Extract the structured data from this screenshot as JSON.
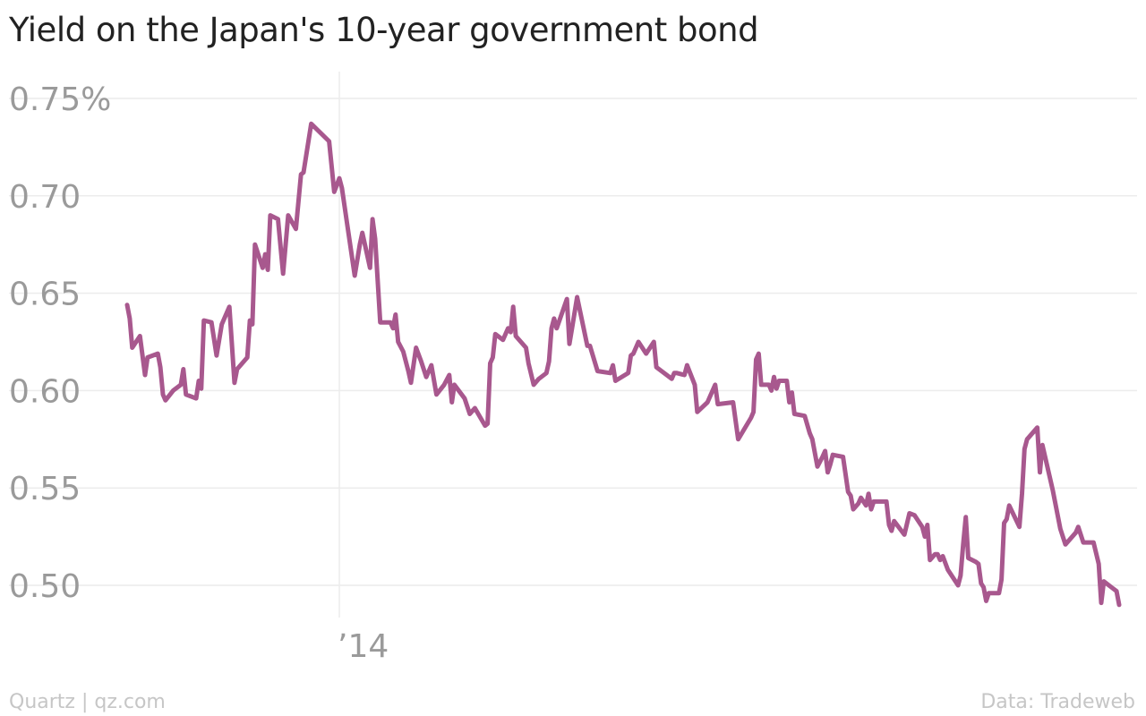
{
  "chart_data": {
    "type": "line",
    "title": "Yield on the Japan's 10-year government bond",
    "xlabel": "",
    "ylabel": "",
    "ylim": [
      0.48,
      0.76
    ],
    "y_ticks": [
      {
        "value": 0.75,
        "label": "0.75%"
      },
      {
        "value": 0.7,
        "label": "0.70"
      },
      {
        "value": 0.65,
        "label": "0.65"
      },
      {
        "value": 0.6,
        "label": "0.60"
      },
      {
        "value": 0.55,
        "label": "0.55"
      },
      {
        "value": 0.5,
        "label": "0.50"
      }
    ],
    "x_ticks": [
      {
        "value": "2014-01-01",
        "label": "’14"
      }
    ],
    "xlim": [
      "2013-10-01",
      "2014-12-31"
    ],
    "grid": true,
    "legend": "none",
    "series": [
      {
        "color": "#a8588e",
        "points": [
          [
            "2013-10-10",
            0.644
          ],
          [
            "2013-10-11",
            0.637
          ],
          [
            "2013-10-12",
            0.622
          ],
          [
            "2013-10-15",
            0.628
          ],
          [
            "2013-10-17",
            0.608
          ],
          [
            "2013-10-18",
            0.617
          ],
          [
            "2013-10-22",
            0.619
          ],
          [
            "2013-10-23",
            0.612
          ],
          [
            "2013-10-24",
            0.598
          ],
          [
            "2013-10-25",
            0.595
          ],
          [
            "2013-10-28",
            0.6
          ],
          [
            "2013-10-31",
            0.603
          ],
          [
            "2013-11-01",
            0.611
          ],
          [
            "2013-11-02",
            0.598
          ],
          [
            "2013-11-06",
            0.596
          ],
          [
            "2013-11-07",
            0.605
          ],
          [
            "2013-11-08",
            0.601
          ],
          [
            "2013-11-09",
            0.636
          ],
          [
            "2013-11-12",
            0.635
          ],
          [
            "2013-11-14",
            0.618
          ],
          [
            "2013-11-16",
            0.634
          ],
          [
            "2013-11-19",
            0.643
          ],
          [
            "2013-11-21",
            0.604
          ],
          [
            "2013-11-22",
            0.611
          ],
          [
            "2013-11-26",
            0.617
          ],
          [
            "2013-11-27",
            0.636
          ],
          [
            "2013-11-28",
            0.634
          ],
          [
            "2013-11-29",
            0.675
          ],
          [
            "2013-12-02",
            0.663
          ],
          [
            "2013-12-03",
            0.67
          ],
          [
            "2013-12-04",
            0.662
          ],
          [
            "2013-12-05",
            0.69
          ],
          [
            "2013-12-08",
            0.688
          ],
          [
            "2013-12-10",
            0.66
          ],
          [
            "2013-12-12",
            0.69
          ],
          [
            "2013-12-15",
            0.683
          ],
          [
            "2013-12-17",
            0.711
          ],
          [
            "2013-12-18",
            0.712
          ],
          [
            "2013-12-21",
            0.737
          ],
          [
            "2013-12-28",
            0.728
          ],
          [
            "2013-12-30",
            0.702
          ],
          [
            "2014-01-01",
            0.709
          ],
          [
            "2014-01-02",
            0.704
          ],
          [
            "2014-01-04",
            0.686
          ],
          [
            "2014-01-07",
            0.659
          ],
          [
            "2014-01-09",
            0.675
          ],
          [
            "2014-01-10",
            0.681
          ],
          [
            "2014-01-13",
            0.663
          ],
          [
            "2014-01-14",
            0.688
          ],
          [
            "2014-01-15",
            0.678
          ],
          [
            "2014-01-17",
            0.635
          ],
          [
            "2014-01-21",
            0.635
          ],
          [
            "2014-01-22",
            0.632
          ],
          [
            "2014-01-23",
            0.639
          ],
          [
            "2014-01-24",
            0.625
          ],
          [
            "2014-01-26",
            0.62
          ],
          [
            "2014-01-28",
            0.61
          ],
          [
            "2014-01-29",
            0.604
          ],
          [
            "2014-01-31",
            0.622
          ],
          [
            "2014-02-02",
            0.615
          ],
          [
            "2014-02-04",
            0.607
          ],
          [
            "2014-02-06",
            0.613
          ],
          [
            "2014-02-08",
            0.598
          ],
          [
            "2014-02-11",
            0.603
          ],
          [
            "2014-02-13",
            0.608
          ],
          [
            "2014-02-14",
            0.594
          ],
          [
            "2014-02-15",
            0.603
          ],
          [
            "2014-02-19",
            0.596
          ],
          [
            "2014-02-21",
            0.588
          ],
          [
            "2014-02-23",
            0.591
          ],
          [
            "2014-02-27",
            0.582
          ],
          [
            "2014-02-28",
            0.583
          ],
          [
            "2014-03-01",
            0.614
          ],
          [
            "2014-03-02",
            0.617
          ],
          [
            "2014-03-03",
            0.629
          ],
          [
            "2014-03-06",
            0.626
          ],
          [
            "2014-03-08",
            0.632
          ],
          [
            "2014-03-09",
            0.63
          ],
          [
            "2014-03-10",
            0.643
          ],
          [
            "2014-03-11",
            0.628
          ],
          [
            "2014-03-15",
            0.622
          ],
          [
            "2014-03-16",
            0.614
          ],
          [
            "2014-03-18",
            0.603
          ],
          [
            "2014-03-20",
            0.606
          ],
          [
            "2014-03-23",
            0.609
          ],
          [
            "2014-03-24",
            0.615
          ],
          [
            "2014-03-25",
            0.632
          ],
          [
            "2014-03-26",
            0.637
          ],
          [
            "2014-03-27",
            0.632
          ],
          [
            "2014-03-31",
            0.647
          ],
          [
            "2014-04-01",
            0.624
          ],
          [
            "2014-04-02",
            0.632
          ],
          [
            "2014-04-04",
            0.648
          ],
          [
            "2014-04-08",
            0.623
          ],
          [
            "2014-04-09",
            0.623
          ],
          [
            "2014-04-12",
            0.61
          ],
          [
            "2014-04-17",
            0.609
          ],
          [
            "2014-04-18",
            0.613
          ],
          [
            "2014-04-19",
            0.605
          ],
          [
            "2014-04-24",
            0.609
          ],
          [
            "2014-04-25",
            0.618
          ],
          [
            "2014-04-26",
            0.619
          ],
          [
            "2014-04-28",
            0.625
          ],
          [
            "2014-05-01",
            0.619
          ],
          [
            "2014-05-04",
            0.625
          ],
          [
            "2014-05-05",
            0.612
          ],
          [
            "2014-05-11",
            0.606
          ],
          [
            "2014-05-12",
            0.609
          ],
          [
            "2014-05-13",
            0.609
          ],
          [
            "2014-05-16",
            0.608
          ],
          [
            "2014-05-17",
            0.613
          ],
          [
            "2014-05-20",
            0.603
          ],
          [
            "2014-05-21",
            0.589
          ],
          [
            "2014-05-25",
            0.594
          ],
          [
            "2014-05-28",
            0.603
          ],
          [
            "2014-05-29",
            0.593
          ],
          [
            "2014-06-04",
            0.594
          ],
          [
            "2014-06-06",
            0.575
          ],
          [
            "2014-06-11",
            0.586
          ],
          [
            "2014-06-12",
            0.589
          ],
          [
            "2014-06-13",
            0.616
          ],
          [
            "2014-06-14",
            0.619
          ],
          [
            "2014-06-15",
            0.603
          ],
          [
            "2014-06-18",
            0.603
          ],
          [
            "2014-06-19",
            0.6
          ],
          [
            "2014-06-20",
            0.607
          ],
          [
            "2014-06-21",
            0.601
          ],
          [
            "2014-06-22",
            0.605
          ],
          [
            "2014-06-25",
            0.605
          ],
          [
            "2014-06-26",
            0.594
          ],
          [
            "2014-06-27",
            0.599
          ],
          [
            "2014-06-28",
            0.588
          ],
          [
            "2014-07-02",
            0.587
          ],
          [
            "2014-07-04",
            0.578
          ],
          [
            "2014-07-05",
            0.575
          ],
          [
            "2014-07-07",
            0.561
          ],
          [
            "2014-07-09",
            0.566
          ],
          [
            "2014-07-10",
            0.569
          ],
          [
            "2014-07-11",
            0.558
          ],
          [
            "2014-07-12",
            0.562
          ],
          [
            "2014-07-13",
            0.567
          ],
          [
            "2014-07-17",
            0.566
          ],
          [
            "2014-07-19",
            0.548
          ],
          [
            "2014-07-20",
            0.546
          ],
          [
            "2014-07-21",
            0.539
          ],
          [
            "2014-07-23",
            0.542
          ],
          [
            "2014-07-24",
            0.545
          ],
          [
            "2014-07-26",
            0.541
          ],
          [
            "2014-07-27",
            0.547
          ],
          [
            "2014-07-28",
            0.539
          ],
          [
            "2014-07-29",
            0.543
          ],
          [
            "2014-08-03",
            0.543
          ],
          [
            "2014-08-04",
            0.531
          ],
          [
            "2014-08-05",
            0.528
          ],
          [
            "2014-08-06",
            0.533
          ],
          [
            "2014-08-10",
            0.526
          ],
          [
            "2014-08-12",
            0.537
          ],
          [
            "2014-08-14",
            0.536
          ],
          [
            "2014-08-17",
            0.53
          ],
          [
            "2014-08-18",
            0.525
          ],
          [
            "2014-08-19",
            0.531
          ],
          [
            "2014-08-20",
            0.513
          ],
          [
            "2014-08-22",
            0.516
          ],
          [
            "2014-08-23",
            0.516
          ],
          [
            "2014-08-24",
            0.513
          ],
          [
            "2014-08-25",
            0.515
          ],
          [
            "2014-08-27",
            0.508
          ],
          [
            "2014-08-31",
            0.5
          ],
          [
            "2014-09-01",
            0.505
          ],
          [
            "2014-09-02",
            0.521
          ],
          [
            "2014-09-03",
            0.535
          ],
          [
            "2014-09-04",
            0.514
          ],
          [
            "2014-09-07",
            0.512
          ],
          [
            "2014-09-08",
            0.511
          ],
          [
            "2014-09-09",
            0.501
          ],
          [
            "2014-09-10",
            0.499
          ],
          [
            "2014-09-11",
            0.492
          ],
          [
            "2014-09-12",
            0.496
          ],
          [
            "2014-09-16",
            0.496
          ],
          [
            "2014-09-17",
            0.503
          ],
          [
            "2014-09-18",
            0.532
          ],
          [
            "2014-09-19",
            0.534
          ],
          [
            "2014-09-20",
            0.541
          ],
          [
            "2014-09-24",
            0.53
          ],
          [
            "2014-09-25",
            0.547
          ],
          [
            "2014-09-26",
            0.57
          ],
          [
            "2014-09-27",
            0.575
          ],
          [
            "2014-10-01",
            0.581
          ],
          [
            "2014-10-02",
            0.558
          ],
          [
            "2014-10-03",
            0.572
          ],
          [
            "2014-10-07",
            0.549
          ],
          [
            "2014-10-10",
            0.529
          ],
          [
            "2014-10-12",
            0.521
          ],
          [
            "2014-10-16",
            0.527
          ],
          [
            "2014-10-17",
            0.53
          ],
          [
            "2014-10-19",
            0.522
          ],
          [
            "2014-10-23",
            0.522
          ],
          [
            "2014-10-25",
            0.511
          ],
          [
            "2014-10-26",
            0.491
          ],
          [
            "2014-10-27",
            0.502
          ],
          [
            "2014-10-30",
            0.499
          ],
          [
            "2014-11-01",
            0.497
          ],
          [
            "2014-11-02",
            0.49
          ]
        ]
      }
    ]
  },
  "footer": {
    "source_left": "Quartz | qz.com",
    "source_right": "Data: Tradeweb"
  }
}
